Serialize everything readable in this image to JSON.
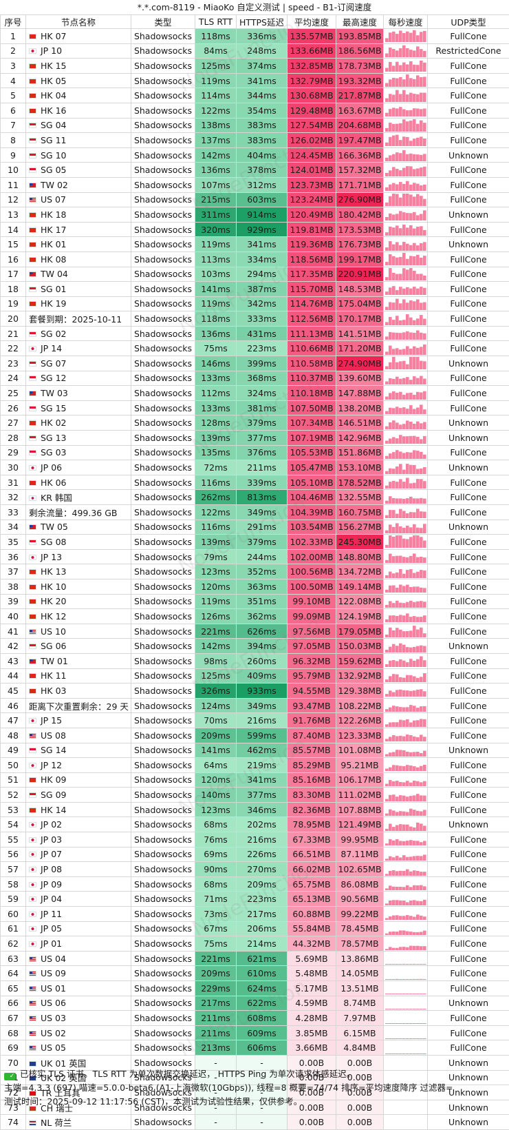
{
  "title": "*.*.com-8119 - MiaoKo 自定义测试 | speed - B1-订阅速度",
  "headers": [
    "序号",
    "节点名称",
    "类型",
    "TLS RTT",
    "HTTPS延迟",
    "平均速度",
    "最高速度",
    "每秒速度",
    "UDP类型"
  ],
  "watermark": "NodeFunction",
  "rows": [
    {
      "idx": "1",
      "flag": "hk",
      "name": "HK 07",
      "type": "Shadowsocks",
      "tls": "118ms",
      "https": "336ms",
      "avg": "135.57MB",
      "max": "193.85MB",
      "udp": "FullCone"
    },
    {
      "idx": "2",
      "flag": "jp",
      "name": "JP 10",
      "type": "Shadowsocks",
      "tls": "84ms",
      "https": "248ms",
      "avg": "133.66MB",
      "max": "186.56MB",
      "udp": "RestrictedCone"
    },
    {
      "idx": "3",
      "flag": "hk",
      "name": "HK 15",
      "type": "Shadowsocks",
      "tls": "125ms",
      "https": "374ms",
      "avg": "132.85MB",
      "max": "178.73MB",
      "udp": "FullCone"
    },
    {
      "idx": "4",
      "flag": "hk",
      "name": "HK 05",
      "type": "Shadowsocks",
      "tls": "119ms",
      "https": "341ms",
      "avg": "132.79MB",
      "max": "193.32MB",
      "udp": "FullCone"
    },
    {
      "idx": "5",
      "flag": "hk",
      "name": "HK 04",
      "type": "Shadowsocks",
      "tls": "114ms",
      "https": "344ms",
      "avg": "130.68MB",
      "max": "217.87MB",
      "udp": "FullCone"
    },
    {
      "idx": "6",
      "flag": "hk",
      "name": "HK 16",
      "type": "Shadowsocks",
      "tls": "122ms",
      "https": "354ms",
      "avg": "129.48MB",
      "max": "163.67MB",
      "udp": "FullCone"
    },
    {
      "idx": "7",
      "flag": "sg",
      "name": "SG 04",
      "type": "Shadowsocks",
      "tls": "138ms",
      "https": "383ms",
      "avg": "127.54MB",
      "max": "204.68MB",
      "udp": "FullCone"
    },
    {
      "idx": "8",
      "flag": "sg",
      "name": "SG 11",
      "type": "Shadowsocks",
      "tls": "137ms",
      "https": "383ms",
      "avg": "126.02MB",
      "max": "197.47MB",
      "udp": "FullCone"
    },
    {
      "idx": "9",
      "flag": "sg",
      "name": "SG 10",
      "type": "Shadowsocks",
      "tls": "142ms",
      "https": "404ms",
      "avg": "124.45MB",
      "max": "166.36MB",
      "udp": "Unknown"
    },
    {
      "idx": "10",
      "flag": "sg",
      "name": "SG 05",
      "type": "Shadowsocks",
      "tls": "136ms",
      "https": "378ms",
      "avg": "124.01MB",
      "max": "157.32MB",
      "udp": "FullCone"
    },
    {
      "idx": "11",
      "flag": "tw",
      "name": "TW 02",
      "type": "Shadowsocks",
      "tls": "107ms",
      "https": "312ms",
      "avg": "123.73MB",
      "max": "171.71MB",
      "udp": "FullCone"
    },
    {
      "idx": "12",
      "flag": "us",
      "name": "US 07",
      "type": "Shadowsocks",
      "tls": "215ms",
      "https": "603ms",
      "avg": "123.24MB",
      "max": "276.90MB",
      "udp": "FullCone"
    },
    {
      "idx": "13",
      "flag": "hk",
      "name": "HK 18",
      "type": "Shadowsocks",
      "tls": "311ms",
      "https": "914ms",
      "avg": "120.49MB",
      "max": "180.42MB",
      "udp": "Unknown"
    },
    {
      "idx": "14",
      "flag": "hk",
      "name": "HK 17",
      "type": "Shadowsocks",
      "tls": "320ms",
      "https": "929ms",
      "avg": "119.81MB",
      "max": "173.53MB",
      "udp": "FullCone"
    },
    {
      "idx": "15",
      "flag": "hk",
      "name": "HK 01",
      "type": "Shadowsocks",
      "tls": "119ms",
      "https": "341ms",
      "avg": "119.36MB",
      "max": "176.73MB",
      "udp": "Unknown"
    },
    {
      "idx": "16",
      "flag": "hk",
      "name": "HK 08",
      "type": "Shadowsocks",
      "tls": "113ms",
      "https": "334ms",
      "avg": "118.56MB",
      "max": "199.17MB",
      "udp": "FullCone"
    },
    {
      "idx": "17",
      "flag": "tw",
      "name": "TW 04",
      "type": "Shadowsocks",
      "tls": "103ms",
      "https": "294ms",
      "avg": "117.35MB",
      "max": "220.91MB",
      "udp": "FullCone"
    },
    {
      "idx": "18",
      "flag": "sg",
      "name": "SG 01",
      "type": "Shadowsocks",
      "tls": "141ms",
      "https": "387ms",
      "avg": "115.70MB",
      "max": "148.53MB",
      "udp": "FullCone"
    },
    {
      "idx": "19",
      "flag": "hk",
      "name": "HK 19",
      "type": "Shadowsocks",
      "tls": "119ms",
      "https": "342ms",
      "avg": "114.76MB",
      "max": "175.04MB",
      "udp": "FullCone"
    },
    {
      "idx": "20",
      "flag": "",
      "name": "套餐到期：2025-10-11",
      "type": "Shadowsocks",
      "tls": "118ms",
      "https": "333ms",
      "avg": "112.56MB",
      "max": "170.17MB",
      "udp": "FullCone"
    },
    {
      "idx": "21",
      "flag": "sg",
      "name": "SG 02",
      "type": "Shadowsocks",
      "tls": "136ms",
      "https": "431ms",
      "avg": "111.13MB",
      "max": "141.51MB",
      "udp": "FullCone"
    },
    {
      "idx": "22",
      "flag": "jp",
      "name": "JP 14",
      "type": "Shadowsocks",
      "tls": "75ms",
      "https": "223ms",
      "avg": "110.66MB",
      "max": "171.20MB",
      "udp": "FullCone"
    },
    {
      "idx": "23",
      "flag": "sg",
      "name": "SG 07",
      "type": "Shadowsocks",
      "tls": "146ms",
      "https": "399ms",
      "avg": "110.58MB",
      "max": "274.90MB",
      "udp": "Unknown"
    },
    {
      "idx": "24",
      "flag": "sg",
      "name": "SG 12",
      "type": "Shadowsocks",
      "tls": "133ms",
      "https": "368ms",
      "avg": "110.37MB",
      "max": "139.60MB",
      "udp": "FullCone"
    },
    {
      "idx": "25",
      "flag": "tw",
      "name": "TW 03",
      "type": "Shadowsocks",
      "tls": "112ms",
      "https": "324ms",
      "avg": "110.18MB",
      "max": "147.88MB",
      "udp": "FullCone"
    },
    {
      "idx": "26",
      "flag": "sg",
      "name": "SG 15",
      "type": "Shadowsocks",
      "tls": "133ms",
      "https": "381ms",
      "avg": "107.50MB",
      "max": "138.20MB",
      "udp": "FullCone"
    },
    {
      "idx": "27",
      "flag": "hk",
      "name": "HK 02",
      "type": "Shadowsocks",
      "tls": "128ms",
      "https": "379ms",
      "avg": "107.34MB",
      "max": "146.51MB",
      "udp": "Unknown"
    },
    {
      "idx": "28",
      "flag": "sg",
      "name": "SG 13",
      "type": "Shadowsocks",
      "tls": "139ms",
      "https": "377ms",
      "avg": "107.19MB",
      "max": "142.96MB",
      "udp": "Unknown"
    },
    {
      "idx": "29",
      "flag": "sg",
      "name": "SG 03",
      "type": "Shadowsocks",
      "tls": "135ms",
      "https": "376ms",
      "avg": "105.53MB",
      "max": "151.86MB",
      "udp": "FullCone"
    },
    {
      "idx": "30",
      "flag": "jp",
      "name": "JP 06",
      "type": "Shadowsocks",
      "tls": "72ms",
      "https": "211ms",
      "avg": "105.47MB",
      "max": "153.10MB",
      "udp": "Unknown"
    },
    {
      "idx": "31",
      "flag": "hk",
      "name": "HK 06",
      "type": "Shadowsocks",
      "tls": "116ms",
      "https": "339ms",
      "avg": "105.10MB",
      "max": "178.52MB",
      "udp": "FullCone"
    },
    {
      "idx": "32",
      "flag": "kr",
      "name": "KR 韩国",
      "type": "Shadowsocks",
      "tls": "262ms",
      "https": "813ms",
      "avg": "104.46MB",
      "max": "132.55MB",
      "udp": "FullCone"
    },
    {
      "idx": "33",
      "flag": "",
      "name": "剩余流量：499.36 GB",
      "type": "Shadowsocks",
      "tls": "122ms",
      "https": "349ms",
      "avg": "104.39MB",
      "max": "160.75MB",
      "udp": "FullCone"
    },
    {
      "idx": "34",
      "flag": "tw",
      "name": "TW 05",
      "type": "Shadowsocks",
      "tls": "116ms",
      "https": "291ms",
      "avg": "103.54MB",
      "max": "156.27MB",
      "udp": "Unknown"
    },
    {
      "idx": "35",
      "flag": "sg",
      "name": "SG 08",
      "type": "Shadowsocks",
      "tls": "139ms",
      "https": "379ms",
      "avg": "102.33MB",
      "max": "245.30MB",
      "udp": "FullCone"
    },
    {
      "idx": "36",
      "flag": "jp",
      "name": "JP 13",
      "type": "Shadowsocks",
      "tls": "79ms",
      "https": "244ms",
      "avg": "102.00MB",
      "max": "148.80MB",
      "udp": "FullCone"
    },
    {
      "idx": "37",
      "flag": "hk",
      "name": "HK 13",
      "type": "Shadowsocks",
      "tls": "123ms",
      "https": "352ms",
      "avg": "100.56MB",
      "max": "134.72MB",
      "udp": "FullCone"
    },
    {
      "idx": "38",
      "flag": "hk",
      "name": "HK 10",
      "type": "Shadowsocks",
      "tls": "120ms",
      "https": "363ms",
      "avg": "100.50MB",
      "max": "149.14MB",
      "udp": "FullCone"
    },
    {
      "idx": "39",
      "flag": "hk",
      "name": "HK 20",
      "type": "Shadowsocks",
      "tls": "119ms",
      "https": "351ms",
      "avg": "99.10MB",
      "max": "122.08MB",
      "udp": "FullCone"
    },
    {
      "idx": "40",
      "flag": "hk",
      "name": "HK 12",
      "type": "Shadowsocks",
      "tls": "126ms",
      "https": "362ms",
      "avg": "99.09MB",
      "max": "124.19MB",
      "udp": "FullCone"
    },
    {
      "idx": "41",
      "flag": "us",
      "name": "US 10",
      "type": "Shadowsocks",
      "tls": "221ms",
      "https": "626ms",
      "avg": "97.56MB",
      "max": "179.05MB",
      "udp": "FullCone"
    },
    {
      "idx": "42",
      "flag": "sg",
      "name": "SG 06",
      "type": "Shadowsocks",
      "tls": "142ms",
      "https": "394ms",
      "avg": "97.05MB",
      "max": "150.03MB",
      "udp": "Unknown"
    },
    {
      "idx": "43",
      "flag": "tw",
      "name": "TW 01",
      "type": "Shadowsocks",
      "tls": "98ms",
      "https": "260ms",
      "avg": "96.32MB",
      "max": "159.62MB",
      "udp": "FullCone"
    },
    {
      "idx": "44",
      "flag": "hk",
      "name": "HK 11",
      "type": "Shadowsocks",
      "tls": "125ms",
      "https": "409ms",
      "avg": "95.79MB",
      "max": "132.92MB",
      "udp": "FullCone"
    },
    {
      "idx": "45",
      "flag": "hk",
      "name": "HK 03",
      "type": "Shadowsocks",
      "tls": "326ms",
      "https": "933ms",
      "avg": "94.55MB",
      "max": "129.38MB",
      "udp": "FullCone"
    },
    {
      "idx": "46",
      "flag": "",
      "name": "距离下次重置剩余：29 天",
      "type": "Shadowsocks",
      "tls": "124ms",
      "https": "349ms",
      "avg": "93.47MB",
      "max": "108.22MB",
      "udp": "FullCone"
    },
    {
      "idx": "47",
      "flag": "jp",
      "name": "JP 15",
      "type": "Shadowsocks",
      "tls": "70ms",
      "https": "216ms",
      "avg": "91.76MB",
      "max": "122.26MB",
      "udp": "FullCone"
    },
    {
      "idx": "48",
      "flag": "us",
      "name": "US 08",
      "type": "Shadowsocks",
      "tls": "209ms",
      "https": "599ms",
      "avg": "87.40MB",
      "max": "123.33MB",
      "udp": "FullCone"
    },
    {
      "idx": "49",
      "flag": "sg",
      "name": "SG 14",
      "type": "Shadowsocks",
      "tls": "141ms",
      "https": "462ms",
      "avg": "85.57MB",
      "max": "101.08MB",
      "udp": "Unknown"
    },
    {
      "idx": "50",
      "flag": "jp",
      "name": "JP 12",
      "type": "Shadowsocks",
      "tls": "64ms",
      "https": "219ms",
      "avg": "85.29MB",
      "max": "95.21MB",
      "udp": "FullCone"
    },
    {
      "idx": "51",
      "flag": "hk",
      "name": "HK 09",
      "type": "Shadowsocks",
      "tls": "120ms",
      "https": "341ms",
      "avg": "85.16MB",
      "max": "106.17MB",
      "udp": "FullCone"
    },
    {
      "idx": "52",
      "flag": "sg",
      "name": "SG 09",
      "type": "Shadowsocks",
      "tls": "140ms",
      "https": "377ms",
      "avg": "83.30MB",
      "max": "111.02MB",
      "udp": "FullCone"
    },
    {
      "idx": "53",
      "flag": "hk",
      "name": "HK 14",
      "type": "Shadowsocks",
      "tls": "123ms",
      "https": "346ms",
      "avg": "82.36MB",
      "max": "107.88MB",
      "udp": "FullCone"
    },
    {
      "idx": "54",
      "flag": "jp",
      "name": "JP 02",
      "type": "Shadowsocks",
      "tls": "68ms",
      "https": "202ms",
      "avg": "78.95MB",
      "max": "121.49MB",
      "udp": "Unknown"
    },
    {
      "idx": "55",
      "flag": "jp",
      "name": "JP 03",
      "type": "Shadowsocks",
      "tls": "76ms",
      "https": "216ms",
      "avg": "67.33MB",
      "max": "99.95MB",
      "udp": "FullCone"
    },
    {
      "idx": "56",
      "flag": "jp",
      "name": "JP 07",
      "type": "Shadowsocks",
      "tls": "69ms",
      "https": "226ms",
      "avg": "66.51MB",
      "max": "87.11MB",
      "udp": "FullCone"
    },
    {
      "idx": "57",
      "flag": "jp",
      "name": "JP 08",
      "type": "Shadowsocks",
      "tls": "90ms",
      "https": "270ms",
      "avg": "66.02MB",
      "max": "102.65MB",
      "udp": "FullCone"
    },
    {
      "idx": "58",
      "flag": "jp",
      "name": "JP 09",
      "type": "Shadowsocks",
      "tls": "68ms",
      "https": "209ms",
      "avg": "65.75MB",
      "max": "86.08MB",
      "udp": "FullCone"
    },
    {
      "idx": "59",
      "flag": "jp",
      "name": "JP 04",
      "type": "Shadowsocks",
      "tls": "71ms",
      "https": "223ms",
      "avg": "65.13MB",
      "max": "90.56MB",
      "udp": "FullCone"
    },
    {
      "idx": "60",
      "flag": "jp",
      "name": "JP 11",
      "type": "Shadowsocks",
      "tls": "73ms",
      "https": "217ms",
      "avg": "60.88MB",
      "max": "99.22MB",
      "udp": "FullCone"
    },
    {
      "idx": "61",
      "flag": "jp",
      "name": "JP 05",
      "type": "Shadowsocks",
      "tls": "67ms",
      "https": "206ms",
      "avg": "55.84MB",
      "max": "78.45MB",
      "udp": "FullCone"
    },
    {
      "idx": "62",
      "flag": "jp",
      "name": "JP 01",
      "type": "Shadowsocks",
      "tls": "75ms",
      "https": "214ms",
      "avg": "44.32MB",
      "max": "78.57MB",
      "udp": "FullCone"
    },
    {
      "idx": "63",
      "flag": "us",
      "name": "US 04",
      "type": "Shadowsocks",
      "tls": "221ms",
      "https": "621ms",
      "avg": "5.69MB",
      "max": "13.86MB",
      "udp": "FullCone"
    },
    {
      "idx": "64",
      "flag": "us",
      "name": "US 09",
      "type": "Shadowsocks",
      "tls": "209ms",
      "https": "610ms",
      "avg": "5.48MB",
      "max": "14.05MB",
      "udp": "FullCone"
    },
    {
      "idx": "65",
      "flag": "us",
      "name": "US 01",
      "type": "Shadowsocks",
      "tls": "229ms",
      "https": "624ms",
      "avg": "5.17MB",
      "max": "13.51MB",
      "udp": "FullCone"
    },
    {
      "idx": "66",
      "flag": "us",
      "name": "US 06",
      "type": "Shadowsocks",
      "tls": "217ms",
      "https": "622ms",
      "avg": "4.59MB",
      "max": "8.74MB",
      "udp": "Unknown"
    },
    {
      "idx": "67",
      "flag": "us",
      "name": "US 03",
      "type": "Shadowsocks",
      "tls": "211ms",
      "https": "608ms",
      "avg": "4.28MB",
      "max": "7.97MB",
      "udp": "FullCone"
    },
    {
      "idx": "68",
      "flag": "us",
      "name": "US 02",
      "type": "Shadowsocks",
      "tls": "211ms",
      "https": "609ms",
      "avg": "3.85MB",
      "max": "6.15MB",
      "udp": "FullCone"
    },
    {
      "idx": "69",
      "flag": "us",
      "name": "US 05",
      "type": "Shadowsocks",
      "tls": "213ms",
      "https": "606ms",
      "avg": "3.66MB",
      "max": "4.84MB",
      "udp": "FullCone"
    },
    {
      "idx": "70",
      "flag": "uk",
      "name": "UK 01 英国",
      "type": "Shadowsocks",
      "tls": "-",
      "https": "-",
      "avg": "0.00B",
      "max": "0.00B",
      "udp": "Unknown"
    },
    {
      "idx": "71",
      "flag": "uk",
      "name": "UK 02 英国",
      "type": "Shadowsocks",
      "tls": "-",
      "https": "-",
      "avg": "0.00B",
      "max": "0.00B",
      "udp": "Unknown"
    },
    {
      "idx": "72",
      "flag": "tr",
      "name": "TR 土耳其",
      "type": "Shadowsocks",
      "tls": "-",
      "https": "-",
      "avg": "0.00B",
      "max": "0.00B",
      "udp": "Unknown"
    },
    {
      "idx": "73",
      "flag": "ch",
      "name": "CH 瑞士",
      "type": "Shadowsocks",
      "tls": "-",
      "https": "-",
      "avg": "0.00B",
      "max": "0.00B",
      "udp": "Unknown"
    },
    {
      "idx": "74",
      "flag": "nl",
      "name": "NL 荷兰",
      "type": "Shadowsocks",
      "tls": "-",
      "https": "-",
      "avg": "0.00B",
      "max": "0.00B",
      "udp": "Unknown"
    }
  ],
  "footer": {
    "note": "已核实 TLS 证书。TLS RTT 为单次数据交换延迟， HTTPS Ping 为单次请求体感延迟。",
    "info": "主端=4.3.3 (697) 喵速=5.0.0-beta6 (A1-上海微软(10Gbps)), 线程=8 概要=74/74 排序=平均速度降序 过滤器=",
    "time": "测试时间：2025-09-12 11:17:56 (CST)，本测试为试验性结果，仅供参考。"
  },
  "colors": {
    "latency_low": "#a8e8c6",
    "latency_high": "#129a5e",
    "speed_low": "#fde3ea",
    "speed_high": "#f02a5c",
    "na_latency": "#eefaf4",
    "na_speed": "#fdeef2",
    "spark": "#f77fa0"
  }
}
